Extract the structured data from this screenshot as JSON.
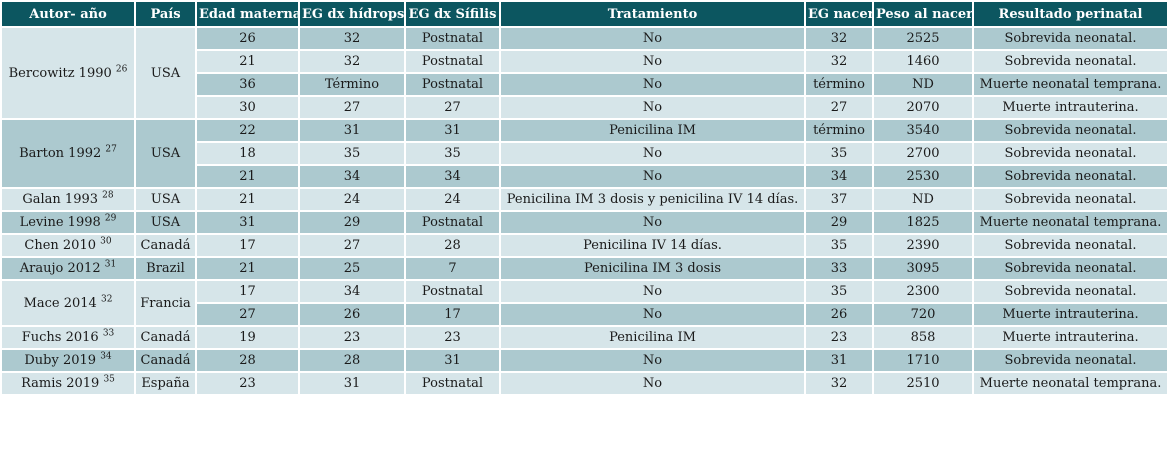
{
  "headers": [
    "Autor- año",
    "País",
    "Edad materna",
    "EG dx hídrops",
    "EG dx Sífilis",
    "Tratamiento",
    "EG nacer",
    "Peso al nacer",
    "Resultado perinatal"
  ],
  "groups": [
    {
      "author": "Bercowitz 1990",
      "ref": "26",
      "country": "USA",
      "shade": "light",
      "rows": [
        {
          "edad": "26",
          "hidrops": "32",
          "sifilis": "Postnatal",
          "tratamiento": "No",
          "eg_nacer": "32",
          "peso": "2525",
          "resultado": "Sobrevida neonatal.",
          "shade": "dark"
        },
        {
          "edad": "21",
          "hidrops": "32",
          "sifilis": "Postnatal",
          "tratamiento": "No",
          "eg_nacer": "32",
          "peso": "1460",
          "resultado": "Sobrevida neonatal.",
          "shade": "light"
        },
        {
          "edad": "36",
          "hidrops": "Término",
          "sifilis": "Postnatal",
          "tratamiento": "No",
          "eg_nacer": "término",
          "peso": "ND",
          "resultado": "Muerte neonatal temprana.",
          "shade": "dark"
        },
        {
          "edad": "30",
          "hidrops": "27",
          "sifilis": "27",
          "tratamiento": "No",
          "eg_nacer": "27",
          "peso": "2070",
          "resultado": "Muerte intrauterina.",
          "shade": "light"
        }
      ]
    },
    {
      "author": "Barton 1992",
      "ref": "27",
      "country": "USA",
      "shade": "dark",
      "rows": [
        {
          "edad": "22",
          "hidrops": "31",
          "sifilis": "31",
          "tratamiento": "Penicilina IM",
          "eg_nacer": "término",
          "peso": "3540",
          "resultado": "Sobrevida neonatal.",
          "shade": "dark"
        },
        {
          "edad": "18",
          "hidrops": "35",
          "sifilis": "35",
          "tratamiento": "No",
          "eg_nacer": "35",
          "peso": "2700",
          "resultado": "Sobrevida neonatal.",
          "shade": "light"
        },
        {
          "edad": "21",
          "hidrops": "34",
          "sifilis": "34",
          "tratamiento": "No",
          "eg_nacer": "34",
          "peso": "2530",
          "resultado": "Sobrevida neonatal.",
          "shade": "dark"
        }
      ]
    },
    {
      "author": "Galan 1993",
      "ref": "28",
      "country": "USA",
      "shade": "light",
      "rows": [
        {
          "edad": "21",
          "hidrops": "24",
          "sifilis": "24",
          "tratamiento": "Penicilina IM 3 dosis y penicilina IV 14 días.",
          "eg_nacer": "37",
          "peso": "ND",
          "resultado": "Sobrevida neonatal.",
          "shade": "light"
        }
      ]
    },
    {
      "author": "Levine 1998",
      "ref": "29",
      "country": "USA",
      "shade": "dark",
      "rows": [
        {
          "edad": "31",
          "hidrops": "29",
          "sifilis": "Postnatal",
          "tratamiento": "No",
          "eg_nacer": "29",
          "peso": "1825",
          "resultado": "Muerte neonatal temprana.",
          "shade": "dark"
        }
      ]
    },
    {
      "author": "Chen 2010",
      "ref": "30",
      "country": "Canadá",
      "shade": "light",
      "rows": [
        {
          "edad": "17",
          "hidrops": "27",
          "sifilis": "28",
          "tratamiento": "Penicilina IV 14 días.",
          "eg_nacer": "35",
          "peso": "2390",
          "resultado": "Sobrevida neonatal.",
          "shade": "light"
        }
      ]
    },
    {
      "author": "Araujo 2012",
      "ref": "31",
      "country": "Brazil",
      "shade": "dark",
      "rows": [
        {
          "edad": "21",
          "hidrops": "25",
          "sifilis": "7",
          "tratamiento": "Penicilina IM 3 dosis",
          "eg_nacer": "33",
          "peso": "3095",
          "resultado": "Sobrevida neonatal.",
          "shade": "dark"
        }
      ]
    },
    {
      "author": "Mace 2014",
      "ref": "32",
      "country": "Francia",
      "shade": "light",
      "rows": [
        {
          "edad": "17",
          "hidrops": "34",
          "sifilis": "Postnatal",
          "tratamiento": "No",
          "eg_nacer": "35",
          "peso": "2300",
          "resultado": "Sobrevida neonatal.",
          "shade": "light"
        },
        {
          "edad": "27",
          "hidrops": "26",
          "sifilis": "17",
          "tratamiento": "No",
          "eg_nacer": "26",
          "peso": "720",
          "resultado": "Muerte intrauterina.",
          "shade": "dark"
        }
      ]
    },
    {
      "author": "Fuchs 2016",
      "ref": "33",
      "country": "Canadá",
      "shade": "light",
      "rows": [
        {
          "edad": "19",
          "hidrops": "23",
          "sifilis": "23",
          "tratamiento": "Penicilina IM",
          "eg_nacer": "23",
          "peso": "858",
          "resultado": "Muerte intrauterina.",
          "shade": "light"
        }
      ]
    },
    {
      "author": "Duby 2019",
      "ref": "34",
      "country": "Canadá",
      "shade": "dark",
      "rows": [
        {
          "edad": "28",
          "hidrops": "28",
          "sifilis": "31",
          "tratamiento": "No",
          "eg_nacer": "31",
          "peso": "1710",
          "resultado": "Sobrevida neonatal.",
          "shade": "dark"
        }
      ]
    },
    {
      "author": "Ramis 2019",
      "ref": "35",
      "country": "España",
      "shade": "light",
      "rows": [
        {
          "edad": "23",
          "hidrops": "31",
          "sifilis": "Postnatal",
          "tratamiento": "No",
          "eg_nacer": "32",
          "peso": "2510",
          "resultado": "Muerte neonatal temprana.",
          "shade": "light"
        }
      ]
    }
  ],
  "colors": {
    "header_bg": "#0c5660",
    "header_text": "#ffffff",
    "row_light": "#d6e5e9",
    "row_dark": "#acc9cf"
  }
}
